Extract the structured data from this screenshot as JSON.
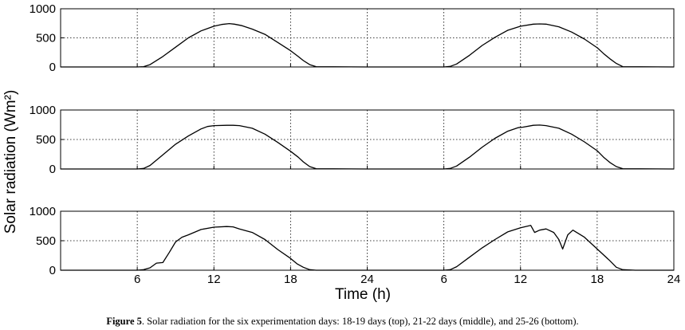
{
  "chart_data": [
    {
      "type": "line",
      "panel": "top",
      "series": [
        {
          "x": [
            0,
            6,
            6.5,
            7,
            8,
            9,
            10,
            11,
            12,
            12.6,
            13.2,
            13.6,
            14.2,
            15,
            16,
            17,
            18,
            18.6,
            19,
            19.5,
            20,
            24,
            30,
            30.5,
            31,
            32,
            33,
            34,
            35,
            36,
            37,
            37.5,
            38,
            39,
            40,
            41,
            42,
            42.5,
            43,
            43.5,
            44,
            48
          ],
          "values": [
            0,
            0,
            5,
            40,
            180,
            340,
            500,
            620,
            700,
            730,
            745,
            735,
            710,
            650,
            560,
            420,
            280,
            180,
            110,
            40,
            5,
            0,
            0,
            10,
            50,
            200,
            370,
            510,
            630,
            700,
            735,
            740,
            735,
            690,
            600,
            480,
            330,
            230,
            140,
            60,
            5,
            0
          ]
        }
      ],
      "xlim": [
        0,
        48
      ],
      "ylim": [
        0,
        1000
      ],
      "yticks": [
        "0",
        "500",
        "1000"
      ],
      "grid": true
    },
    {
      "type": "line",
      "panel": "middle",
      "series": [
        {
          "x": [
            0,
            6,
            6.5,
            7,
            8,
            9,
            10,
            11,
            11.5,
            12,
            13,
            13.5,
            14,
            15,
            16,
            17,
            18,
            18.6,
            19,
            19.5,
            20,
            24,
            30,
            30.5,
            31,
            32,
            33,
            34,
            35,
            35.8,
            36.2,
            37,
            37.5,
            38,
            39,
            40,
            41,
            42,
            42.5,
            43,
            43.5,
            44,
            48
          ],
          "values": [
            0,
            0,
            10,
            60,
            240,
            420,
            560,
            680,
            720,
            735,
            740,
            740,
            735,
            690,
            590,
            450,
            300,
            200,
            120,
            40,
            5,
            0,
            0,
            10,
            50,
            200,
            370,
            520,
            640,
            700,
            710,
            740,
            745,
            735,
            690,
            590,
            460,
            310,
            200,
            110,
            40,
            5,
            0
          ]
        }
      ],
      "xlim": [
        0,
        48
      ],
      "ylim": [
        0,
        1000
      ],
      "yticks": [
        "0",
        "500",
        "1000"
      ],
      "grid": true
    },
    {
      "type": "line",
      "panel": "bottom",
      "series": [
        {
          "x": [
            0,
            6,
            6.5,
            7,
            7.5,
            8,
            8.5,
            9,
            9.5,
            10,
            11,
            12,
            13,
            13.5,
            14,
            15,
            16,
            17,
            18,
            18.5,
            19,
            19.5,
            20,
            24,
            30,
            30.5,
            31,
            32,
            33,
            34,
            35,
            36,
            36.8,
            37.1,
            37.5,
            38,
            38.6,
            39,
            39.3,
            39.7,
            40.1,
            41,
            42,
            43,
            43.5,
            44,
            45,
            48
          ],
          "values": [
            0,
            0,
            10,
            40,
            120,
            130,
            300,
            480,
            560,
            600,
            690,
            730,
            740,
            735,
            700,
            640,
            520,
            350,
            200,
            110,
            50,
            10,
            0,
            0,
            0,
            10,
            60,
            220,
            380,
            520,
            650,
            720,
            760,
            640,
            680,
            700,
            640,
            520,
            360,
            600,
            680,
            560,
            360,
            160,
            50,
            10,
            0,
            0
          ]
        }
      ],
      "xlim": [
        0,
        48
      ],
      "ylim": [
        0,
        1000
      ],
      "yticks": [
        "0",
        "500",
        "1000"
      ],
      "xticks": [
        "6",
        "12",
        "18",
        "24",
        "6",
        "12",
        "18",
        "24"
      ],
      "grid": true
    }
  ],
  "ylabel": "Solar radiation (Wm²)",
  "xlabel": "Time (h)",
  "caption": {
    "label": "Figure 5",
    "text": ". Solar radiation for the six experimentation days: 18-19 days (top), 21-22 days (middle), and 25-26 (bottom)."
  }
}
